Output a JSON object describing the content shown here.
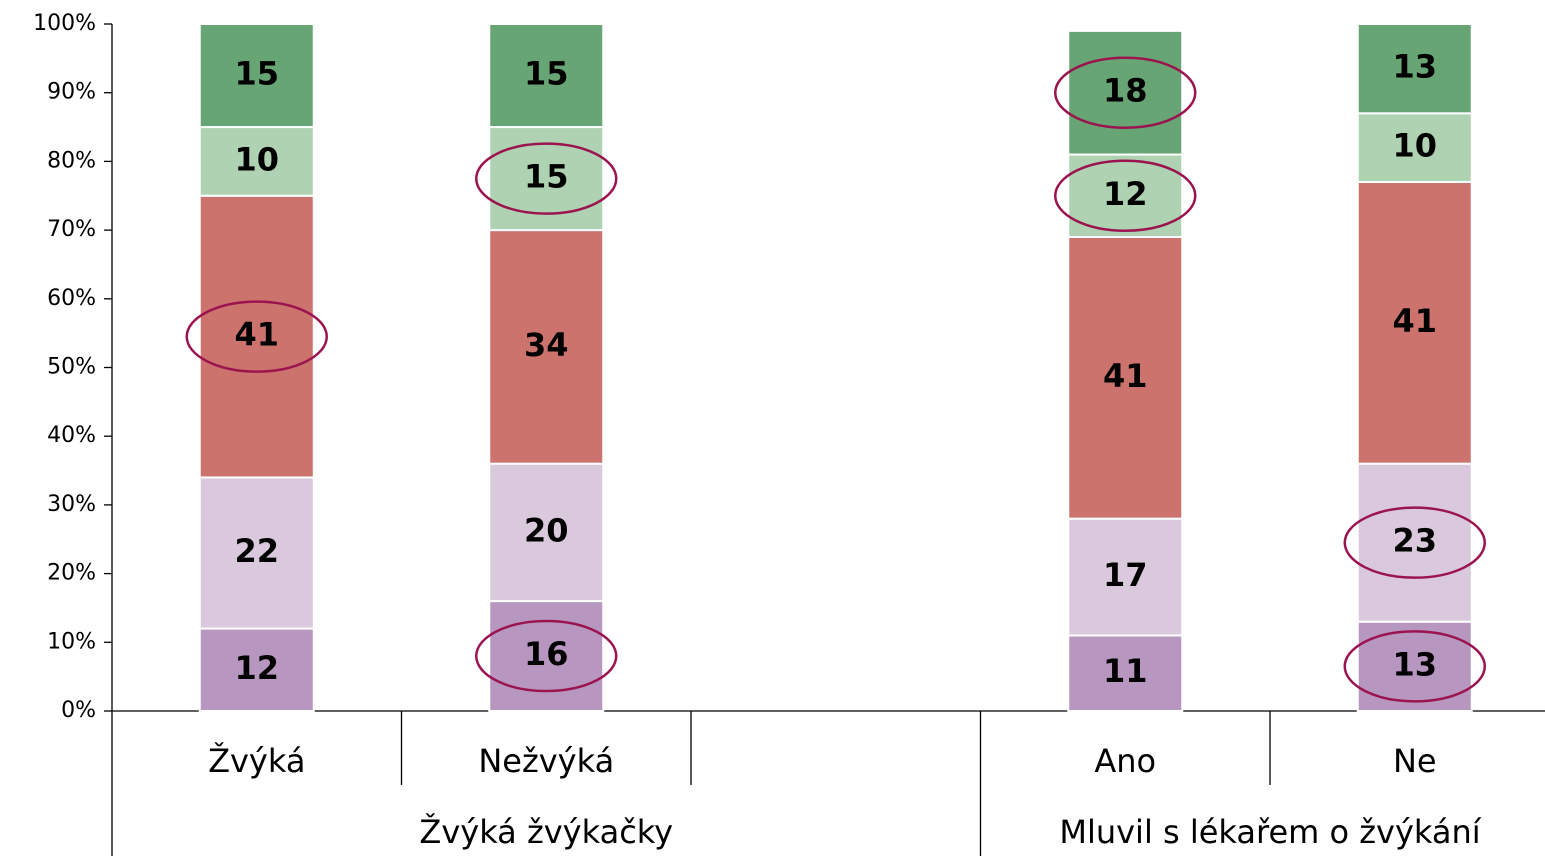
{
  "chart_data": {
    "type": "stacked_bar",
    "categories": [
      "Žvýká",
      "Nežvýká",
      null,
      "Ano",
      "Ne"
    ],
    "groups": [
      {
        "label": "Žvýká žvýkačky",
        "count": 3
      },
      {
        "label": "Mluvil s lékařem o žvýkání",
        "count": 2
      }
    ],
    "series": [
      {
        "color": "#b797c0",
        "values": [
          12,
          16,
          null,
          11,
          13
        ],
        "highlight": [
          false,
          true,
          false,
          false,
          true
        ]
      },
      {
        "color": "#dac9dd",
        "values": [
          22,
          20,
          null,
          17,
          23
        ],
        "highlight": [
          false,
          false,
          false,
          false,
          true
        ]
      },
      {
        "color": "#cc736e",
        "values": [
          41,
          34,
          null,
          41,
          41
        ],
        "highlight": [
          true,
          false,
          false,
          false,
          false
        ]
      },
      {
        "color": "#afd3b2",
        "values": [
          10,
          15,
          null,
          12,
          10
        ],
        "highlight": [
          false,
          true,
          false,
          true,
          false
        ]
      },
      {
        "color": "#67a574",
        "values": [
          15,
          15,
          null,
          18,
          13
        ],
        "highlight": [
          false,
          false,
          false,
          true,
          false
        ]
      }
    ],
    "ylim": [
      0,
      100
    ],
    "yticks": [
      {
        "value": 0,
        "label": "0%"
      },
      {
        "value": 10,
        "label": "10%"
      },
      {
        "value": 20,
        "label": "20%"
      },
      {
        "value": 30,
        "label": "30%"
      },
      {
        "value": 40,
        "label": "40%"
      },
      {
        "value": 50,
        "label": "50%"
      },
      {
        "value": 60,
        "label": "60%"
      },
      {
        "value": 70,
        "label": "70%"
      },
      {
        "value": 80,
        "label": "80%"
      },
      {
        "value": 90,
        "label": "90%"
      },
      {
        "value": 100,
        "label": "100%"
      }
    ],
    "grid": false,
    "highlight_color": "#9b1450"
  }
}
